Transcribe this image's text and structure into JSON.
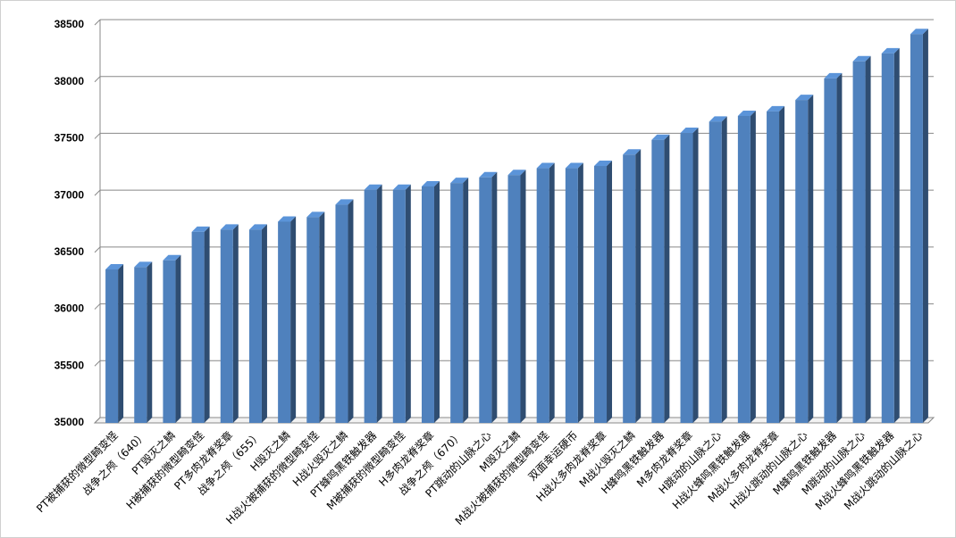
{
  "chart_data": {
    "type": "bar",
    "categories": [
      "PT被捕获的微型畸变怪",
      "战争之颅（640）",
      "PT毁灭之鳞",
      "H被捕获的微型畸变怪",
      "PT多肉龙脊奖章",
      "战争之颅（655）",
      "H毁灭之鳞",
      "H战火被捕获的微型畸变怪",
      "H战火毁灭之鳞",
      "PT蜂鸣黑铁触发器",
      "M被捕获的微型畸变怪",
      "H多肉龙脊奖章",
      "战争之颅（670）",
      "PT跳动的山脉之心",
      "M毁灭之鳞",
      "M战火被捕获的微型畸变怪",
      "双面幸运硬币",
      "H战火多肉龙脊奖章",
      "M战火毁灭之鳞",
      "H蜂鸣黑铁触发器",
      "M多肉龙脊奖章",
      "H跳动的山脉之心",
      "H战火蜂鸣黑铁触发器",
      "M战火多肉龙脊奖章",
      "H战火跳动的山脉之心",
      "M蜂鸣黑铁触发器",
      "M跳动的山脉之心",
      "M战火蜂鸣黑铁触发器",
      "M战火跳动的山脉之心"
    ],
    "values": [
      36350,
      36370,
      36430,
      36680,
      36700,
      36700,
      36770,
      36810,
      36920,
      37050,
      37050,
      37080,
      37110,
      37160,
      37180,
      37240,
      37240,
      37260,
      37360,
      37490,
      37550,
      37650,
      37700,
      37740,
      37840,
      38030,
      38180,
      38250,
      38420
    ],
    "color": "#4f81bd",
    "ylim": [
      35000,
      38500
    ],
    "yticks": [
      35000,
      35500,
      36000,
      36500,
      37000,
      37500,
      38000,
      38500
    ],
    "grid": true
  }
}
